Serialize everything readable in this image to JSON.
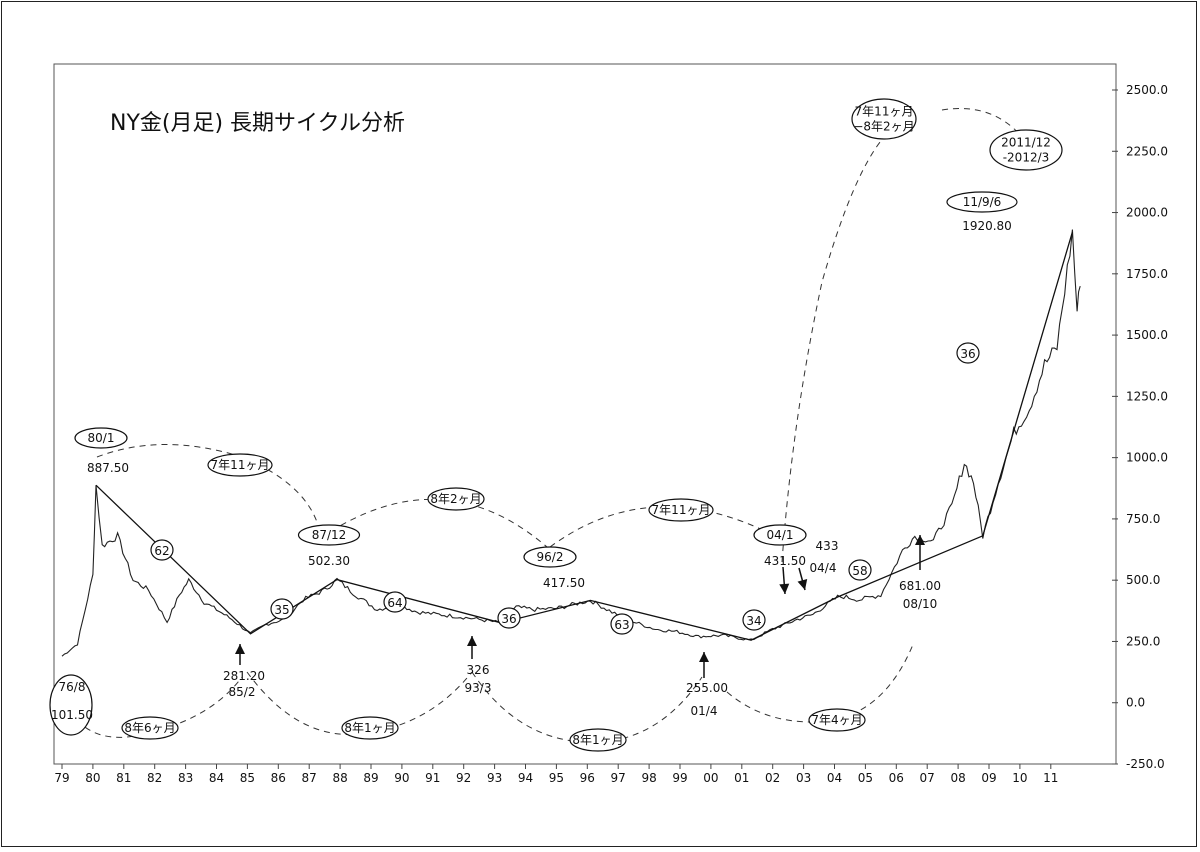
{
  "chart_data": {
    "type": "line",
    "title": "NY金(月足) 長期サイクル分析",
    "x_ticks": [
      "79",
      "80",
      "81",
      "82",
      "83",
      "84",
      "85",
      "86",
      "87",
      "88",
      "89",
      "90",
      "91",
      "92",
      "93",
      "94",
      "95",
      "96",
      "97",
      "98",
      "99",
      "00",
      "01",
      "02",
      "03",
      "04",
      "05",
      "06",
      "07",
      "08",
      "09",
      "10",
      "11"
    ],
    "y_ticks": [
      "2500.0",
      "2250.0",
      "2000.0",
      "1750.0",
      "1500.0",
      "1250.0",
      "1000.0",
      "750.0",
      "500.0",
      "250.0",
      "0.0",
      "-250.0"
    ],
    "ylim": [
      -250,
      2500
    ],
    "grid": false,
    "price_path": [
      [
        1979,
        190
      ],
      [
        1979.5,
        240
      ],
      [
        1980,
        520
      ],
      [
        1980.1,
        887.5
      ],
      [
        1980.3,
        640
      ],
      [
        1980.8,
        680
      ],
      [
        1981.3,
        500
      ],
      [
        1981.8,
        460
      ],
      [
        1982.4,
        330
      ],
      [
        1982.8,
        440
      ],
      [
        1983.1,
        500
      ],
      [
        1983.6,
        410
      ],
      [
        1984,
        380
      ],
      [
        1984.5,
        340
      ],
      [
        1985.1,
        281.2
      ],
      [
        1985.6,
        320
      ],
      [
        1986.2,
        340
      ],
      [
        1986.8,
        420
      ],
      [
        1987.5,
        460
      ],
      [
        1987.9,
        502.3
      ],
      [
        1988.5,
        440
      ],
      [
        1989.2,
        380
      ],
      [
        1989.9,
        400
      ],
      [
        1990.5,
        370
      ],
      [
        1991.2,
        360
      ],
      [
        1991.9,
        350
      ],
      [
        1992.5,
        340
      ],
      [
        1993.2,
        326
      ],
      [
        1993.7,
        390
      ],
      [
        1994.3,
        380
      ],
      [
        1995,
        385
      ],
      [
        1996.1,
        417.5
      ],
      [
        1996.8,
        370
      ],
      [
        1997.5,
        330
      ],
      [
        1998.2,
        300
      ],
      [
        1998.9,
        290
      ],
      [
        1999.6,
        270
      ],
      [
        2000.4,
        275
      ],
      [
        2001.3,
        255
      ],
      [
        2002,
        300
      ],
      [
        2002.8,
        340
      ],
      [
        2003.3,
        360
      ],
      [
        2004.1,
        431.5
      ],
      [
        2004.3,
        433
      ],
      [
        2004.8,
        420
      ],
      [
        2005.5,
        440
      ],
      [
        2006.2,
        620
      ],
      [
        2006.6,
        680
      ],
      [
        2007.2,
        660
      ],
      [
        2007.8,
        800
      ],
      [
        2008.2,
        980
      ],
      [
        2008.5,
        900
      ],
      [
        2008.8,
        681
      ],
      [
        2009.3,
        900
      ],
      [
        2009.8,
        1100
      ],
      [
        2010.3,
        1200
      ],
      [
        2010.8,
        1380
      ],
      [
        2011.2,
        1450
      ],
      [
        2011.7,
        1920.8
      ],
      [
        2011.85,
        1600
      ],
      [
        2011.95,
        1700
      ]
    ],
    "trend_lines": [
      [
        [
          1980.1,
          887.5
        ],
        [
          1985.1,
          281.2
        ],
        [
          1987.9,
          502.3
        ],
        [
          1993.2,
          326
        ],
        [
          1996.1,
          417.5
        ],
        [
          2001.3,
          255
        ],
        [
          2004.1,
          431.5
        ],
        [
          2008.8,
          681
        ],
        [
          2011.7,
          1920.8
        ]
      ]
    ],
    "extrema": [
      {
        "date": "76/8",
        "value": "101.50"
      },
      {
        "date": "80/1",
        "value": "887.50"
      },
      {
        "date": "85/2",
        "value": "281.20"
      },
      {
        "date": "87/12",
        "value": "502.30"
      },
      {
        "date": "93/3",
        "value": "326"
      },
      {
        "date": "96/2",
        "value": "417.50"
      },
      {
        "date": "01/4",
        "value": "255.00"
      },
      {
        "date": "04/1",
        "value": "431.50"
      },
      {
        "date": "04/4",
        "value": "433"
      },
      {
        "date": "08/10",
        "value": "681.00"
      },
      {
        "date": "11/9/6",
        "value": "1920.80"
      }
    ],
    "cycle_labels": [
      "7年11ヶ月",
      "8年2ヶ月",
      "7年11ヶ月",
      "7年11ヶ月\n−8年2ヶ月",
      "2011/12\n-2012/3",
      "8年6ヶ月",
      "8年1ヶ月",
      "8年1ヶ月",
      "7年4ヶ月"
    ],
    "segment_counts": [
      "62",
      "35",
      "64",
      "36",
      "63",
      "34",
      "58",
      "36"
    ]
  }
}
